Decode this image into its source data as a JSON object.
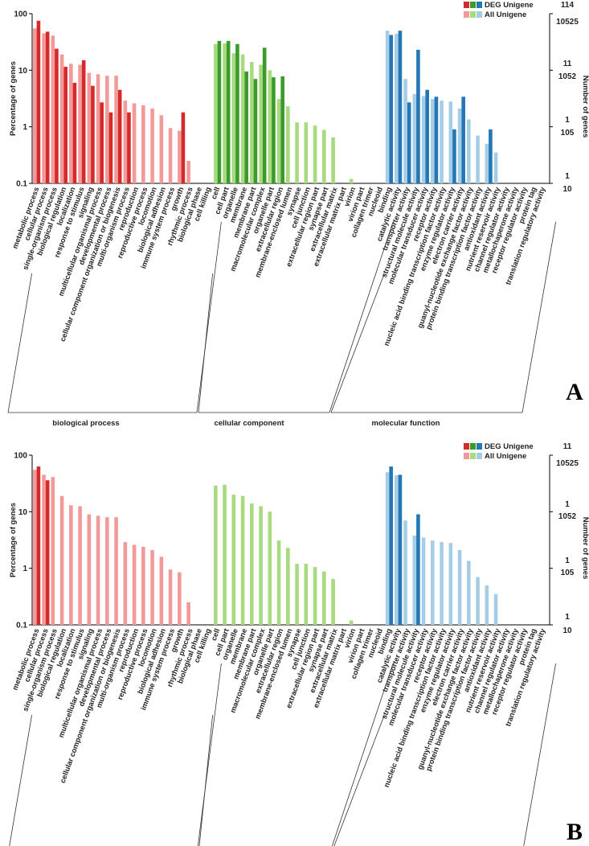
{
  "figure": {
    "panels": [
      "A",
      "B"
    ]
  },
  "colors": {
    "bp_deg": "#d42a2a",
    "bp_all": "#f29a9a",
    "cc_deg": "#3a9a2a",
    "cc_all": "#a8da80",
    "mf_deg": "#2476b4",
    "mf_all": "#a6cde6"
  },
  "categories": [
    "metabolic process",
    "cellular process",
    "single-organism process",
    "biological regulation",
    "localization",
    "response to stimulus",
    "signaling",
    "multicellular organismal process",
    "developmental process",
    "cellular component organization or biogenesis",
    "multi-organism process",
    "reproduction",
    "reproductive process",
    "locomotion",
    "biological adhesion",
    "immune system process",
    "growth",
    "rhythmic process",
    "biological phase",
    "cell killing",
    "cell",
    "cell part",
    "organelle",
    "membrane",
    "membrane part",
    "macromolecular complex",
    "organelle part",
    "extracellular region",
    "membrane-enclosed lumen",
    "synapse",
    "cell junction",
    "extracellular region part",
    "synapse part",
    "extracellular matrix",
    "extracellular matrix part",
    "virion",
    "virion part",
    "collagen trimer",
    "nucleoid",
    "binding",
    "catalytic activity",
    "transporter activity",
    "structural molecule activity",
    "molecular transducer activity",
    "receptor activity",
    "nucleic acid binding transcription factor activity",
    "enzyme regulator activity",
    "electron carrier activity",
    "guanyl-nucleotide exchange factor activity",
    "protein binding transcription factor activity",
    "antioxidant activity",
    "nutrient reservoir activity",
    "channel regulator activity",
    "metallochaperone activity",
    "receptor regulator activity",
    "protein tag",
    "translation regulatory activity"
  ],
  "group_names": [
    "biological process",
    "cellular component",
    "molecular function"
  ],
  "chart_data": [
    {
      "type": "bar",
      "panel": "A",
      "scale": "log",
      "ylabel": "Percentage of genes",
      "ylabel_right": "Number of genes",
      "yticks": [
        "100",
        "10",
        "1",
        "0.1"
      ],
      "right_ticks_deg": [
        "114",
        "11",
        "1",
        "1"
      ],
      "right_ticks_all": [
        "10525",
        "1052",
        "105",
        "10"
      ],
      "ylim": [
        0.1,
        100
      ],
      "legend": [
        "DEG Unigene",
        "All Unigene"
      ],
      "groups": [
        "biological process",
        "cellular component",
        "molecular function"
      ],
      "series": [
        {
          "name": "DEG Unigene",
          "values": [
            75,
            48,
            24,
            11.5,
            6,
            15,
            5.3,
            2.7,
            1.8,
            4.5,
            1.8,
            null,
            null,
            null,
            null,
            null,
            1.8,
            null,
            null,
            null,
            33,
            33,
            29,
            9.5,
            7,
            25,
            7.5,
            7.8,
            null,
            null,
            null,
            null,
            null,
            null,
            null,
            null,
            null,
            null,
            null,
            42,
            50,
            2.7,
            23,
            4.5,
            3.4,
            null,
            0.9,
            3.4,
            null,
            null,
            0.9,
            null,
            null,
            null,
            null,
            null,
            null
          ]
        },
        {
          "name": "All Unigene",
          "values": [
            55,
            45,
            41,
            19,
            13,
            12.5,
            9,
            8.5,
            8,
            8,
            2.9,
            2.6,
            2.4,
            2.1,
            1.6,
            0.95,
            0.85,
            0.25,
            null,
            null,
            29,
            30,
            20,
            19,
            14,
            12.5,
            10,
            3.1,
            2.3,
            1.2,
            1.2,
            1.05,
            0.88,
            0.65,
            null,
            0.12,
            null,
            null,
            null,
            50,
            44,
            7,
            3.8,
            3.5,
            3.1,
            2.9,
            2.8,
            2.1,
            1.35,
            0.7,
            0.5,
            0.35,
            null,
            null,
            null,
            null,
            null
          ]
        }
      ]
    },
    {
      "type": "bar",
      "panel": "B",
      "scale": "log",
      "ylabel": "Percentage of genes",
      "ylabel_right": "Number of genes",
      "yticks": [
        "100",
        "10",
        "1",
        "0.1"
      ],
      "right_ticks_deg": [
        "11",
        "1",
        "1",
        "1"
      ],
      "right_ticks_all": [
        "10525",
        "1052",
        "105",
        "10"
      ],
      "ylim": [
        0.1,
        100
      ],
      "legend": [
        "DEG Unigene",
        "All Unigene"
      ],
      "groups": [
        "biological process",
        "cellular component",
        "molecular function"
      ],
      "series": [
        {
          "name": "DEG Unigene",
          "values": [
            63,
            36,
            null,
            null,
            null,
            null,
            null,
            null,
            null,
            null,
            null,
            null,
            null,
            null,
            null,
            null,
            null,
            null,
            null,
            null,
            null,
            null,
            null,
            null,
            null,
            null,
            null,
            null,
            null,
            null,
            null,
            null,
            null,
            null,
            null,
            null,
            null,
            null,
            null,
            63,
            45,
            null,
            9,
            null,
            null,
            null,
            null,
            null,
            null,
            null,
            null,
            null,
            null,
            null,
            null,
            null,
            null
          ]
        },
        {
          "name": "All Unigene",
          "values": [
            55,
            45,
            41,
            19,
            13,
            12.5,
            9,
            8.5,
            8,
            8,
            2.9,
            2.6,
            2.4,
            2.1,
            1.6,
            0.95,
            0.85,
            0.25,
            null,
            null,
            29,
            30,
            20,
            19,
            14,
            12.5,
            10,
            3.1,
            2.3,
            1.2,
            1.2,
            1.05,
            0.88,
            0.65,
            null,
            0.12,
            null,
            null,
            null,
            50,
            44,
            7,
            3.8,
            3.5,
            3.1,
            2.9,
            2.8,
            2.1,
            1.35,
            0.7,
            0.5,
            0.35,
            null,
            null,
            null,
            null,
            null
          ]
        }
      ]
    }
  ]
}
